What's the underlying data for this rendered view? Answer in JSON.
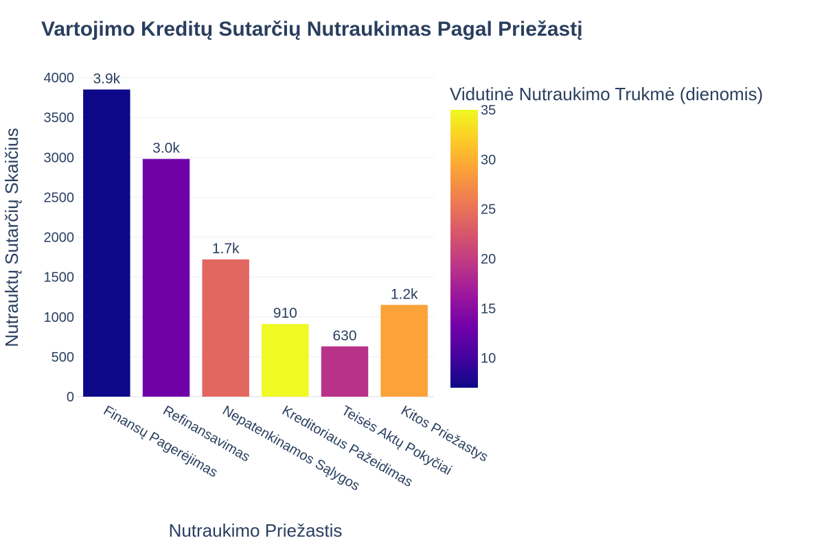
{
  "chart_data": {
    "type": "bar",
    "title": "Vartojimo Kreditų Sutarčių Nutraukimas Pagal Priežastį",
    "xlabel": "Nutraukimo Priežastis",
    "ylabel": "Nutrauktų Sutarčių Skaičius",
    "ylim": [
      0,
      4000
    ],
    "yticks": [
      0,
      500,
      1000,
      1500,
      2000,
      2500,
      3000,
      3500,
      4000
    ],
    "grid": true,
    "categories": [
      "Finansų Pagerėjimas",
      "Refinansavimas",
      "Nepatenkinamos Sąlygos",
      "Kreditoriaus Pažeidimas",
      "Teisės Aktų Pokyčiai",
      "Kitos Priežastys"
    ],
    "values": [
      3850,
      2980,
      1720,
      910,
      630,
      1150
    ],
    "data_labels": [
      "3.9k",
      "3.0k",
      "1.7k",
      "910",
      "630",
      "1.2k"
    ],
    "color_values": [
      7,
      13,
      24,
      35,
      19,
      29
    ],
    "colorbar": {
      "title": "Vidutinė Nutraukimo Trukmė (dienomis)",
      "range": [
        7,
        35
      ],
      "ticks": [
        10,
        15,
        20,
        25,
        30,
        35
      ],
      "colorscale": [
        "#0d0887",
        "#46039f",
        "#7201a8",
        "#9c179e",
        "#bd3786",
        "#d8576b",
        "#ed7953",
        "#fb9f3a",
        "#fdca26",
        "#f0f921"
      ]
    }
  }
}
